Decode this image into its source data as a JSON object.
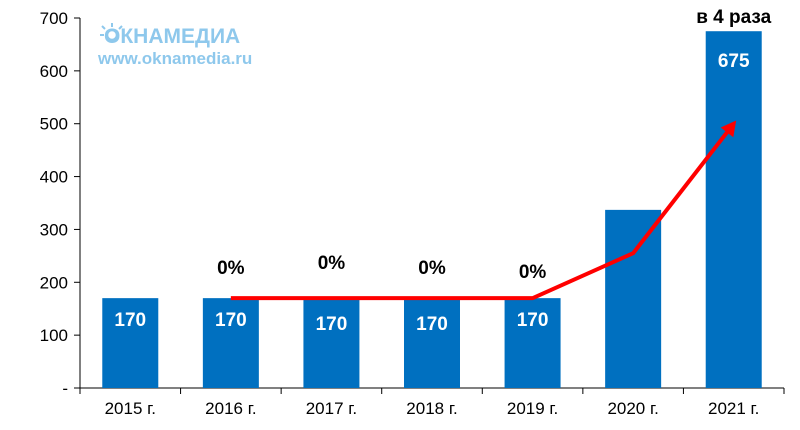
{
  "chart_data": {
    "type": "bar",
    "categories": [
      "2015 г.",
      "2016 г.",
      "2017 г.",
      "2018 г.",
      "2019 г.",
      "2020 г.",
      "2021 г."
    ],
    "values": [
      170,
      170,
      170,
      170,
      170,
      337,
      675
    ],
    "data_labels": [
      "170",
      "170",
      "170",
      "170",
      "170",
      "",
      "675"
    ],
    "y_ticks": [
      "-",
      "100",
      "200",
      "300",
      "400",
      "500",
      "600",
      "700"
    ],
    "ylim": [
      0,
      700
    ],
    "grid": false,
    "trend_line": {
      "color": "#ff0000",
      "points": [
        [
          1,
          170
        ],
        [
          2,
          170
        ],
        [
          3,
          170
        ],
        [
          4,
          170
        ],
        [
          5,
          255
        ],
        [
          6,
          500
        ]
      ]
    },
    "annotations": [
      {
        "text": "0%",
        "category_index": 1
      },
      {
        "text": "0%",
        "category_index": 2
      },
      {
        "text": "0%",
        "category_index": 3
      },
      {
        "text": "0%",
        "category_index": 4
      },
      {
        "text": "в 4 раза",
        "category_index": 6
      }
    ],
    "bar_color": "#0070c0"
  },
  "watermark": {
    "brand": "ОКНАМЕДИА",
    "url": "www.oknamedia.ru",
    "color": "#8ec8ec"
  }
}
